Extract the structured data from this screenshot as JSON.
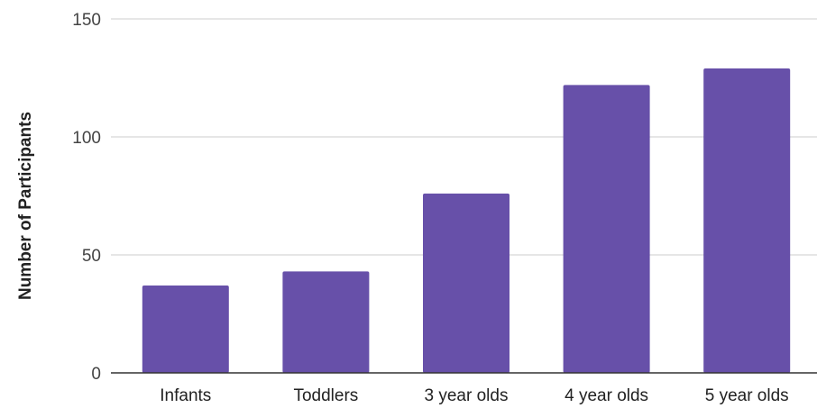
{
  "chart_data": {
    "type": "bar",
    "categories": [
      "Infants",
      "Toddlers",
      "3 year olds",
      "4 year olds",
      "5 year olds"
    ],
    "values": [
      37,
      43,
      76,
      122,
      129
    ],
    "title": "",
    "xlabel": "",
    "ylabel": "Number of Participants",
    "ylim": [
      0,
      150
    ],
    "yticks": [
      0,
      50,
      100,
      150
    ],
    "grid": true,
    "legend": "none",
    "bar_color": "#6750a9",
    "grid_color": "#cccccc",
    "axis_color": "#333333"
  }
}
